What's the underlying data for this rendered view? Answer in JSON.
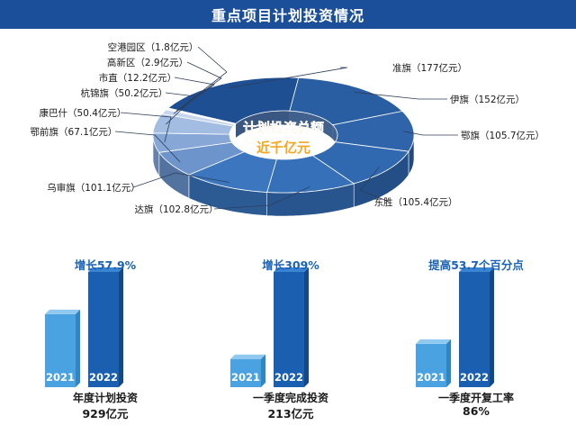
{
  "title": "重点项目计划投资情况",
  "colors": {
    "banner": "#1b4f99",
    "accent": "#1a63b8",
    "bar2021": "#4aa3e0",
    "bar2022": "#1a5fb0"
  },
  "center_label": {
    "line1": "计划投资总额",
    "line2": "近千亿元"
  },
  "chart_data": [
    {
      "type": "pie",
      "donut": true,
      "categories": [
        "准旗",
        "伊旗",
        "鄂旗",
        "东胜",
        "达旗",
        "乌审旗",
        "鄂前旗",
        "康巴什",
        "杭锦旗",
        "市直",
        "高新区",
        "空港园区"
      ],
      "values": [
        177,
        152,
        105.7,
        105.4,
        102.8,
        101.1,
        67.1,
        50.4,
        50.2,
        12.2,
        2.9,
        1.8
      ],
      "labels": [
        "准旗（177亿元）",
        "伊旗（152亿元）",
        "鄂旗（105.7亿元）",
        "东胜（105.4亿元）",
        "达旗（102.8亿元）",
        "乌审旗（101.1亿元）",
        "鄂前旗（67.1亿元）",
        "康巴什（50.4亿元）",
        "杭锦旗（50.2亿元）",
        "市直（12.2亿元）",
        "高新区（2.9亿元）",
        "空港园区（1.8亿元）"
      ],
      "unit": "亿元"
    },
    {
      "type": "bar",
      "categories": [
        "2021",
        "2022"
      ],
      "values": [
        588.4,
        929
      ],
      "title": "年度计划投资",
      "value_label": "929亿元",
      "annotation": "增长57.9%"
    },
    {
      "type": "bar",
      "categories": [
        "2021",
        "2022"
      ],
      "values": [
        52.1,
        213
      ],
      "title": "一季度完成投资",
      "value_label": "213亿元",
      "annotation": "增长309%"
    },
    {
      "type": "bar",
      "categories": [
        "2021",
        "2022"
      ],
      "values": [
        32.3,
        86
      ],
      "title": "一季度开复工率",
      "value_label": "86%",
      "annotation": "提高53.7个百分点"
    }
  ]
}
